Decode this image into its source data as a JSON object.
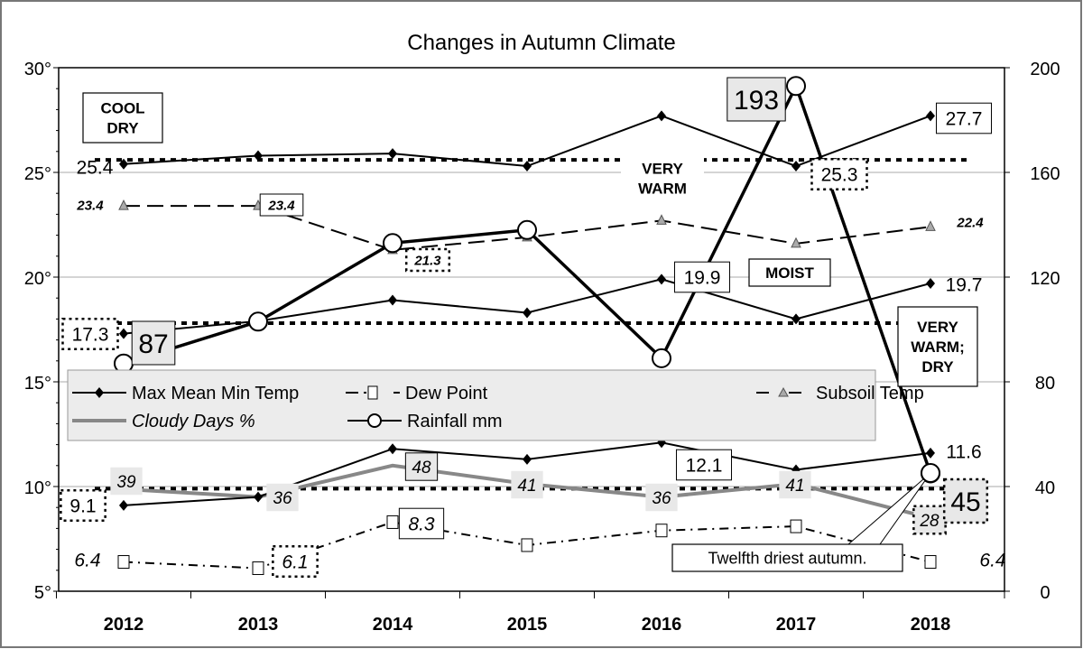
{
  "chart_data": {
    "type": "line",
    "title": "Changes in Autumn Climate",
    "categories": [
      "2012",
      "2013",
      "2014",
      "2015",
      "2016",
      "2017",
      "2018"
    ],
    "y_left": {
      "ticks": [
        "5°",
        "10°",
        "15°",
        "20°",
        "25°",
        "30°"
      ],
      "ylim": [
        5,
        30
      ]
    },
    "y_right": {
      "ticks": [
        "0",
        "40",
        "80",
        "120",
        "160",
        "200"
      ],
      "ylim": [
        0,
        200
      ]
    },
    "grid": true,
    "legend_placement": "center-left",
    "legend": [
      "Max Mean Min Temp",
      "Dew Point",
      "Subsoil Temp",
      "Cloudy Days %",
      "Rainfall mm"
    ],
    "series": [
      {
        "name": "Max Mean Min Temp",
        "axis": "left",
        "values": [
          25.4,
          25.8,
          25.9,
          25.3,
          27.7,
          25.3,
          27.7
        ],
        "color": "#000000",
        "marker": "diamond"
      },
      {
        "name": "Max Mean Min Temp",
        "axis": "left",
        "values": [
          17.3,
          17.9,
          18.9,
          18.3,
          19.9,
          18.0,
          19.7
        ],
        "color": "#000000",
        "marker": "diamond"
      },
      {
        "name": "Max Mean Min Temp",
        "axis": "left",
        "values": [
          9.1,
          9.5,
          11.8,
          11.3,
          12.1,
          10.8,
          11.6
        ],
        "color": "#000000",
        "marker": "diamond"
      },
      {
        "name": "Dew Point",
        "axis": "left",
        "values": [
          6.4,
          6.1,
          8.3,
          7.2,
          7.9,
          8.1,
          6.4
        ],
        "color": "#000000",
        "marker": "square"
      },
      {
        "name": "Subsoil Temp",
        "axis": "left",
        "values": [
          23.4,
          23.4,
          21.3,
          21.9,
          22.7,
          21.6,
          22.4
        ],
        "color": "#000000",
        "marker": "triangle"
      },
      {
        "name": "Cloudy Days %",
        "axis": "right",
        "values": [
          39,
          36,
          48,
          41,
          36,
          41,
          28
        ],
        "color": "#888888",
        "marker": "none"
      },
      {
        "name": "Rainfall mm",
        "axis": "right",
        "values": [
          87,
          103,
          133,
          138,
          89,
          193,
          45
        ],
        "color": "#000000",
        "marker": "circle"
      }
    ],
    "reference_lines_left": [
      25.6,
      17.8,
      9.9
    ],
    "data_labels": [
      {
        "series": 0,
        "index": 0,
        "text": "25.4"
      },
      {
        "series": 0,
        "index": 5,
        "text": "25.3"
      },
      {
        "series": 0,
        "index": 6,
        "text": "27.7"
      },
      {
        "series": 1,
        "index": 0,
        "text": "17.3"
      },
      {
        "series": 1,
        "index": 4,
        "text": "19.9"
      },
      {
        "series": 1,
        "index": 6,
        "text": "19.7"
      },
      {
        "series": 2,
        "index": 0,
        "text": "9.1"
      },
      {
        "series": 2,
        "index": 4,
        "text": "12.1"
      },
      {
        "series": 2,
        "index": 6,
        "text": "11.6"
      },
      {
        "series": 3,
        "index": 0,
        "text": "6.4"
      },
      {
        "series": 3,
        "index": 1,
        "text": "6.1"
      },
      {
        "series": 3,
        "index": 2,
        "text": "8.3"
      },
      {
        "series": 3,
        "index": 6,
        "text": "6.4"
      },
      {
        "series": 4,
        "index": 0,
        "text": "23.4"
      },
      {
        "series": 4,
        "index": 1,
        "text": "23.4"
      },
      {
        "series": 4,
        "index": 2,
        "text": "21.3"
      },
      {
        "series": 4,
        "index": 6,
        "text": "22.4"
      },
      {
        "series": 5,
        "index": 0,
        "text": "39"
      },
      {
        "series": 5,
        "index": 1,
        "text": "36"
      },
      {
        "series": 5,
        "index": 2,
        "text": "48"
      },
      {
        "series": 5,
        "index": 3,
        "text": "41"
      },
      {
        "series": 5,
        "index": 4,
        "text": "36"
      },
      {
        "series": 5,
        "index": 5,
        "text": "41"
      },
      {
        "series": 5,
        "index": 6,
        "text": "28"
      },
      {
        "series": 6,
        "index": 0,
        "text": "87"
      },
      {
        "series": 6,
        "index": 5,
        "text": "193"
      },
      {
        "series": 6,
        "index": 6,
        "text": "45"
      }
    ],
    "annotations": [
      {
        "lines": [
          "COOL",
          "DRY"
        ]
      },
      {
        "lines": [
          "VERY",
          "WARM"
        ]
      },
      {
        "lines": [
          "MOIST"
        ]
      },
      {
        "lines": [
          "VERY",
          "WARM;",
          "DRY"
        ]
      },
      {
        "lines": [
          "Twelfth driest autumn."
        ]
      }
    ]
  }
}
